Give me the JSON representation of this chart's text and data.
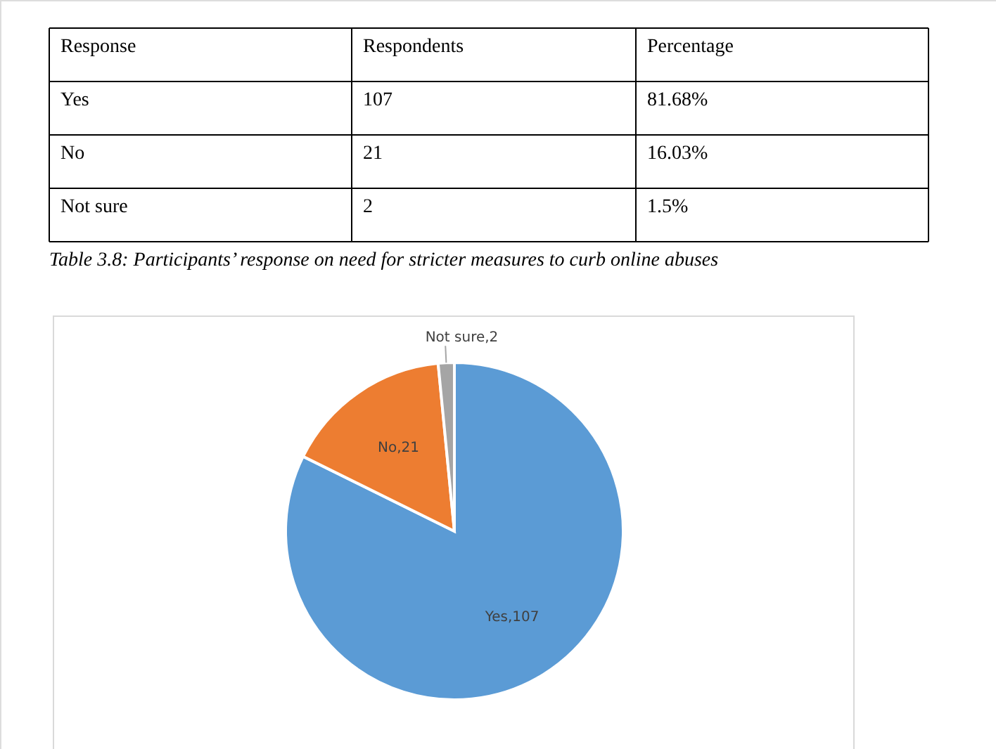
{
  "chart_data": [
    {
      "type": "other",
      "annotations": [
        "Response",
        "Respondents",
        "Percentage",
        "Yes",
        "107",
        "81.68%",
        "No",
        "21",
        "16.03%",
        "Not sure",
        "2",
        "1.5%",
        "Table 3.8: Participants’ response on need for stricter measures to curb online abuses"
      ]
    },
    {
      "type": "pie",
      "categories": [
        "Yes",
        "No",
        "Not sure"
      ],
      "values": [
        107,
        21,
        2
      ],
      "colors": [
        "#5b9bd5",
        "#ed7d31",
        "#a5a5a5"
      ],
      "value_labels": [
        ",107",
        ",21",
        ",2"
      ]
    }
  ]
}
